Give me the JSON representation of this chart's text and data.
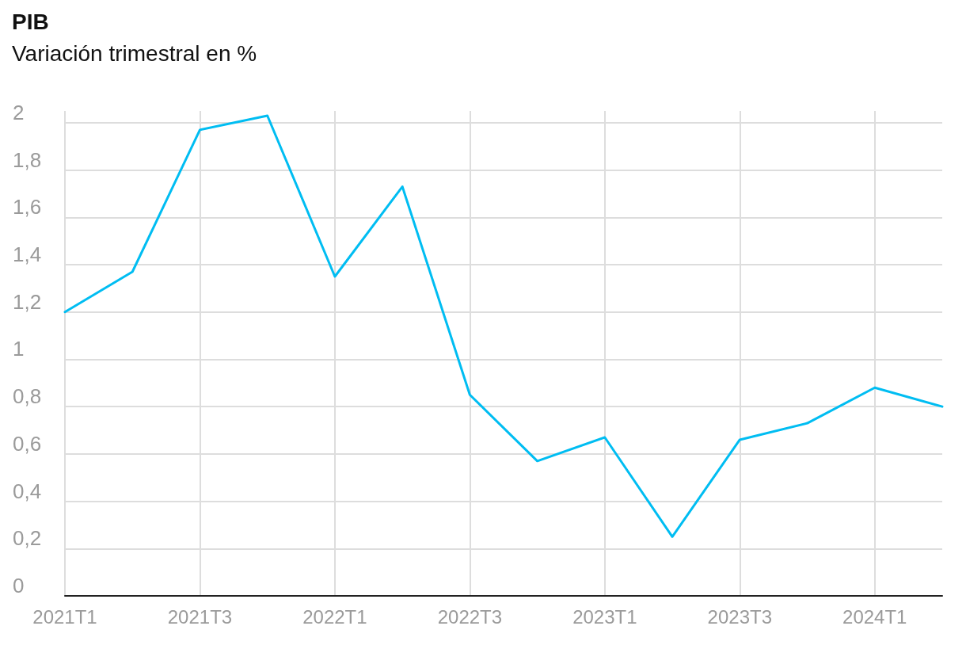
{
  "chart_data": {
    "type": "line",
    "title": "PIB",
    "subtitle": "Variación trimestral en %",
    "categories": [
      "2021T1",
      null,
      "2021T3",
      null,
      "2022T1",
      null,
      "2022T3",
      null,
      "2023T1",
      null,
      "2023T3",
      null,
      "2024T1",
      null
    ],
    "series": [
      {
        "color": "#00bdf2",
        "values": [
          1.2,
          1.37,
          1.97,
          2.03,
          1.35,
          1.73,
          0.85,
          0.57,
          0.67,
          0.25,
          0.66,
          0.73,
          0.88,
          0.8
        ]
      }
    ],
    "ylim": [
      0,
      2.05
    ],
    "yticks": [
      0,
      {
        "value": 0.2,
        "label": "0,2"
      },
      {
        "value": 0.4,
        "label": "0,4"
      },
      {
        "value": 0.6,
        "label": "0,6"
      },
      {
        "value": 0.8,
        "label": "0,8"
      },
      1,
      {
        "value": 1.2,
        "label": "1,2"
      },
      {
        "value": 1.4,
        "label": "1,4"
      },
      {
        "value": 1.6,
        "label": "1,6"
      },
      {
        "value": 1.8,
        "label": "1,8"
      },
      2
    ],
    "grid": true,
    "marker": "none",
    "line_style": "solid"
  }
}
